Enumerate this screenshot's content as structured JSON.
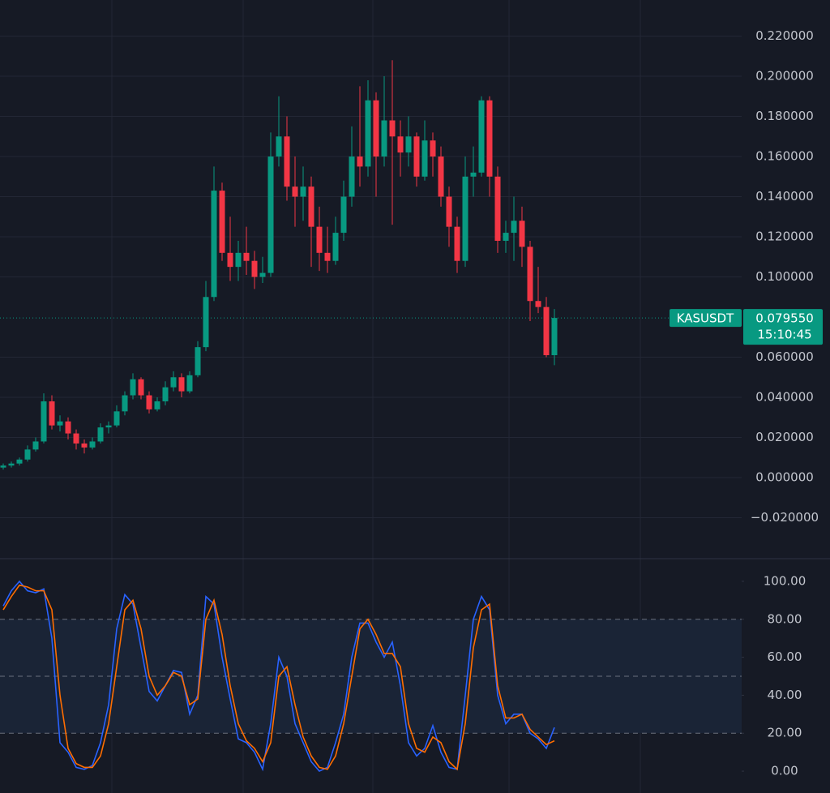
{
  "chart_data": [
    {
      "type": "candlestick",
      "symbol": "KASUSDT",
      "up_color": "#089981",
      "down_color": "#f23645",
      "ylim": [
        -0.04,
        0.238
      ],
      "yticks": [
        {
          "value": -0.02,
          "label": "−0.020000"
        },
        {
          "value": 0,
          "label": "0.000000"
        },
        {
          "value": 0.02,
          "label": "0.020000"
        },
        {
          "value": 0.04,
          "label": "0.040000"
        },
        {
          "value": 0.06,
          "label": "0.060000"
        },
        {
          "value": 0.1,
          "label": "0.100000"
        },
        {
          "value": 0.12,
          "label": "0.120000"
        },
        {
          "value": 0.14,
          "label": "0.140000"
        },
        {
          "value": 0.16,
          "label": "0.160000"
        },
        {
          "value": 0.18,
          "label": "0.180000"
        },
        {
          "value": 0.2,
          "label": "0.200000"
        },
        {
          "value": 0.22,
          "label": "0.220000"
        }
      ],
      "grid": true,
      "price_line": {
        "value": 0.07955,
        "label": "0.079550",
        "countdown": "15:10:45"
      },
      "candles": [
        [
          0.005,
          0.007,
          0.004,
          0.006
        ],
        [
          0.006,
          0.008,
          0.005,
          0.007
        ],
        [
          0.007,
          0.01,
          0.006,
          0.009
        ],
        [
          0.009,
          0.016,
          0.008,
          0.014
        ],
        [
          0.014,
          0.02,
          0.013,
          0.018
        ],
        [
          0.018,
          0.042,
          0.017,
          0.038
        ],
        [
          0.038,
          0.041,
          0.024,
          0.026
        ],
        [
          0.026,
          0.031,
          0.023,
          0.028
        ],
        [
          0.028,
          0.03,
          0.019,
          0.022
        ],
        [
          0.022,
          0.024,
          0.014,
          0.017
        ],
        [
          0.017,
          0.019,
          0.012,
          0.015
        ],
        [
          0.015,
          0.02,
          0.014,
          0.018
        ],
        [
          0.018,
          0.027,
          0.017,
          0.025
        ],
        [
          0.025,
          0.028,
          0.022,
          0.026
        ],
        [
          0.026,
          0.036,
          0.025,
          0.033
        ],
        [
          0.033,
          0.043,
          0.031,
          0.041
        ],
        [
          0.041,
          0.052,
          0.039,
          0.049
        ],
        [
          0.049,
          0.05,
          0.039,
          0.041
        ],
        [
          0.041,
          0.043,
          0.032,
          0.034
        ],
        [
          0.034,
          0.04,
          0.033,
          0.038
        ],
        [
          0.038,
          0.048,
          0.036,
          0.045
        ],
        [
          0.045,
          0.053,
          0.043,
          0.05
        ],
        [
          0.05,
          0.052,
          0.04,
          0.043
        ],
        [
          0.043,
          0.053,
          0.042,
          0.051
        ],
        [
          0.051,
          0.068,
          0.05,
          0.065
        ],
        [
          0.065,
          0.098,
          0.063,
          0.09
        ],
        [
          0.09,
          0.155,
          0.088,
          0.143
        ],
        [
          0.143,
          0.147,
          0.108,
          0.112
        ],
        [
          0.112,
          0.13,
          0.098,
          0.105
        ],
        [
          0.105,
          0.118,
          0.098,
          0.112
        ],
        [
          0.112,
          0.125,
          0.101,
          0.108
        ],
        [
          0.108,
          0.113,
          0.094,
          0.1
        ],
        [
          0.1,
          0.11,
          0.097,
          0.102
        ],
        [
          0.102,
          0.172,
          0.1,
          0.16
        ],
        [
          0.16,
          0.19,
          0.155,
          0.17
        ],
        [
          0.17,
          0.18,
          0.138,
          0.145
        ],
        [
          0.145,
          0.16,
          0.125,
          0.14
        ],
        [
          0.14,
          0.155,
          0.128,
          0.145
        ],
        [
          0.145,
          0.15,
          0.105,
          0.125
        ],
        [
          0.125,
          0.135,
          0.103,
          0.112
        ],
        [
          0.112,
          0.125,
          0.102,
          0.108
        ],
        [
          0.108,
          0.13,
          0.106,
          0.122
        ],
        [
          0.122,
          0.148,
          0.118,
          0.14
        ],
        [
          0.14,
          0.175,
          0.135,
          0.16
        ],
        [
          0.16,
          0.195,
          0.145,
          0.155
        ],
        [
          0.155,
          0.198,
          0.15,
          0.188
        ],
        [
          0.188,
          0.192,
          0.14,
          0.16
        ],
        [
          0.16,
          0.2,
          0.155,
          0.178
        ],
        [
          0.178,
          0.208,
          0.126,
          0.17
        ],
        [
          0.17,
          0.178,
          0.15,
          0.162
        ],
        [
          0.162,
          0.18,
          0.155,
          0.17
        ],
        [
          0.17,
          0.172,
          0.145,
          0.15
        ],
        [
          0.15,
          0.178,
          0.148,
          0.168
        ],
        [
          0.168,
          0.172,
          0.15,
          0.16
        ],
        [
          0.16,
          0.165,
          0.135,
          0.14
        ],
        [
          0.14,
          0.145,
          0.115,
          0.125
        ],
        [
          0.125,
          0.13,
          0.102,
          0.108
        ],
        [
          0.108,
          0.16,
          0.105,
          0.15
        ],
        [
          0.15,
          0.165,
          0.14,
          0.152
        ],
        [
          0.152,
          0.19,
          0.15,
          0.188
        ],
        [
          0.188,
          0.19,
          0.14,
          0.15
        ],
        [
          0.15,
          0.155,
          0.112,
          0.118
        ],
        [
          0.118,
          0.128,
          0.112,
          0.122
        ],
        [
          0.122,
          0.14,
          0.108,
          0.128
        ],
        [
          0.128,
          0.135,
          0.105,
          0.115
        ],
        [
          0.115,
          0.118,
          0.078,
          0.088
        ],
        [
          0.088,
          0.105,
          0.082,
          0.085
        ],
        [
          0.085,
          0.09,
          0.06,
          0.061
        ],
        [
          0.061,
          0.084,
          0.056,
          0.07955
        ]
      ]
    },
    {
      "type": "line",
      "ylim": [
        -11.5,
        111.5
      ],
      "yticks": [
        {
          "value": 0,
          "label": "0.00"
        },
        {
          "value": 20,
          "label": "20.00"
        },
        {
          "value": 40,
          "label": "40.00"
        },
        {
          "value": 60,
          "label": "60.00"
        },
        {
          "value": 80,
          "label": "80.00"
        },
        {
          "value": 100,
          "label": "100.00"
        }
      ],
      "band": [
        20,
        80
      ],
      "midline": 50,
      "band_color": "#1a2436",
      "series": [
        {
          "color": "#2962ff",
          "values": [
            87,
            95,
            100,
            95,
            94,
            96,
            70,
            15,
            10,
            2,
            1,
            3,
            15,
            35,
            75,
            93,
            88,
            65,
            42,
            37,
            45,
            53,
            52,
            30,
            40,
            92,
            88,
            60,
            38,
            17,
            15,
            10,
            1,
            25,
            60,
            50,
            25,
            15,
            5,
            0,
            2,
            15,
            30,
            60,
            78,
            78,
            68,
            60,
            68,
            45,
            15,
            8,
            12,
            24,
            10,
            2,
            1,
            40,
            80,
            92,
            85,
            40,
            25,
            30,
            30,
            20,
            17,
            12,
            23
          ]
        },
        {
          "color": "#ff6d00",
          "values": [
            85,
            92,
            98,
            97,
            95,
            95,
            85,
            40,
            12,
            4,
            2,
            2,
            8,
            25,
            55,
            85,
            90,
            75,
            50,
            40,
            45,
            52,
            50,
            35,
            38,
            80,
            90,
            72,
            45,
            25,
            16,
            12,
            5,
            15,
            50,
            55,
            35,
            18,
            8,
            2,
            1,
            8,
            25,
            50,
            75,
            80,
            72,
            62,
            62,
            55,
            25,
            12,
            10,
            18,
            15,
            5,
            1,
            25,
            65,
            85,
            88,
            45,
            28,
            28,
            30,
            22,
            18,
            14,
            16
          ]
        }
      ]
    }
  ]
}
